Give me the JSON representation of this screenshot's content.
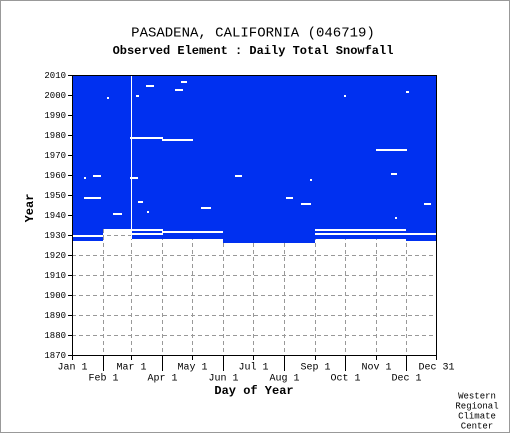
{
  "chart_data": {
    "type": "coverage",
    "title": "PASADENA, CALIFORNIA   (046719)",
    "subtitle": "Observed Element : Daily Total Snowfall",
    "x_label": "Day of Year",
    "y_label": "Year",
    "credit": [
      "Western",
      "Regional",
      "Climate",
      "Center"
    ],
    "color": "#0030f0",
    "xlim": [
      1,
      365
    ],
    "ylim": [
      1870,
      2010
    ],
    "xticks": [
      {
        "value": 1,
        "label": "Jan 1"
      },
      {
        "value": 32,
        "label": "Feb 1"
      },
      {
        "value": 60,
        "label": "Mar 1"
      },
      {
        "value": 91,
        "label": "Apr 1"
      },
      {
        "value": 121,
        "label": "May 1"
      },
      {
        "value": 152,
        "label": "Jun 1"
      },
      {
        "value": 182,
        "label": "Jul 1"
      },
      {
        "value": 213,
        "label": "Aug 1"
      },
      {
        "value": 244,
        "label": "Sep 1"
      },
      {
        "value": 274,
        "label": "Oct 1"
      },
      {
        "value": 305,
        "label": "Nov 1"
      },
      {
        "value": 335,
        "label": "Dec 1"
      },
      {
        "value": 365,
        "label": "Dec 31"
      }
    ],
    "yticks": [
      1870,
      1880,
      1890,
      1900,
      1910,
      1920,
      1930,
      1940,
      1950,
      1960,
      1970,
      1980,
      1990,
      2000,
      2010
    ],
    "grid": true,
    "blocks": [
      {
        "days": [
          1,
          31
        ],
        "years": [
          1927,
          2010
        ]
      },
      {
        "days": [
          32,
          59
        ],
        "years": [
          1933,
          2010
        ]
      },
      {
        "days": [
          60,
          151
        ],
        "years": [
          1928,
          2010
        ]
      },
      {
        "days": [
          152,
          243
        ],
        "years": [
          1926,
          2010
        ]
      },
      {
        "days": [
          244,
          334
        ],
        "years": [
          1928,
          2010
        ]
      },
      {
        "days": [
          335,
          365
        ],
        "years": [
          1927,
          2010
        ]
      }
    ],
    "missing": [
      {
        "days": [
          1,
          31
        ],
        "years": [
          1929,
          1929
        ]
      },
      {
        "days": [
          13,
          29
        ],
        "years": [
          1948,
          1948
        ]
      },
      {
        "days": [
          22,
          29
        ],
        "years": [
          1959,
          1959
        ]
      },
      {
        "days": [
          13,
          14
        ],
        "years": [
          1958,
          1958
        ]
      },
      {
        "days": [
          36,
          37
        ],
        "years": [
          1998,
          1998
        ]
      },
      {
        "days": [
          42,
          50
        ],
        "years": [
          1940,
          1940
        ]
      },
      {
        "days": [
          60,
          60
        ],
        "years": [
          1928,
          2009
        ]
      },
      {
        "days": [
          59,
          91
        ],
        "years": [
          1978,
          1978
        ]
      },
      {
        "days": [
          91,
          121
        ],
        "years": [
          1977,
          1977
        ]
      },
      {
        "days": [
          65,
          67
        ],
        "years": [
          1999,
          1999
        ]
      },
      {
        "days": [
          75,
          82
        ],
        "years": [
          2004,
          2004
        ]
      },
      {
        "days": [
          104,
          111
        ],
        "years": [
          2002,
          2002
        ]
      },
      {
        "days": [
          110,
          115
        ],
        "years": [
          2006,
          2006
        ]
      },
      {
        "days": [
          59,
          66
        ],
        "years": [
          1958,
          1958
        ]
      },
      {
        "days": [
          67,
          71
        ],
        "years": [
          1946,
          1946
        ]
      },
      {
        "days": [
          76,
          77
        ],
        "years": [
          1941,
          1941
        ]
      },
      {
        "days": [
          60,
          91
        ],
        "years": [
          1932,
          1932
        ]
      },
      {
        "days": [
          60,
          91
        ],
        "years": [
          1930,
          1930
        ]
      },
      {
        "days": [
          91,
          151
        ],
        "years": [
          1931,
          1931
        ]
      },
      {
        "days": [
          130,
          139
        ],
        "years": [
          1943,
          1943
        ]
      },
      {
        "days": [
          164,
          170
        ],
        "years": [
          1959,
          1959
        ]
      },
      {
        "days": [
          215,
          221
        ],
        "years": [
          1948,
          1948
        ]
      },
      {
        "days": [
          230,
          239
        ],
        "years": [
          1945,
          1945
        ]
      },
      {
        "days": [
          239,
          240
        ],
        "years": [
          1957,
          1957
        ]
      },
      {
        "days": [
          244,
          334
        ],
        "years": [
          1932,
          1932
        ]
      },
      {
        "days": [
          244,
          334
        ],
        "years": [
          1930,
          1930
        ]
      },
      {
        "days": [
          273,
          274
        ],
        "years": [
          1999,
          1999
        ]
      },
      {
        "days": [
          305,
          335
        ],
        "years": [
          1972,
          1972
        ]
      },
      {
        "days": [
          320,
          325
        ],
        "years": [
          1960,
          1960
        ]
      },
      {
        "days": [
          324,
          325
        ],
        "years": [
          1938,
          1938
        ]
      },
      {
        "days": [
          335,
          337
        ],
        "years": [
          2001,
          2001
        ]
      },
      {
        "days": [
          353,
          359
        ],
        "years": [
          1945,
          1945
        ]
      },
      {
        "days": [
          335,
          365
        ],
        "years": [
          1930,
          1930
        ]
      }
    ]
  }
}
